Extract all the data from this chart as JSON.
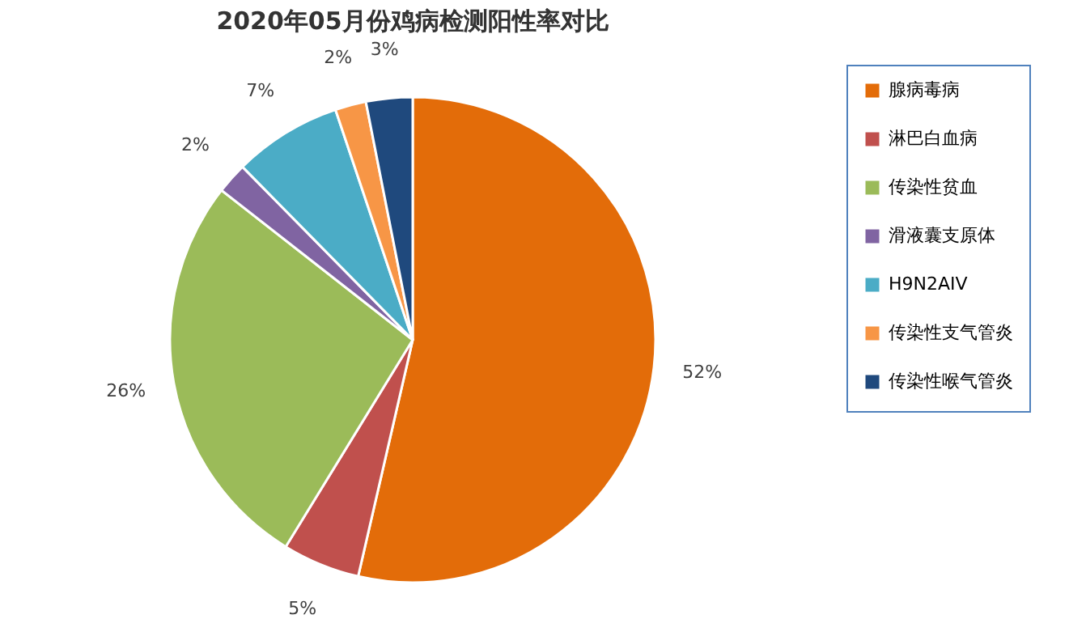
{
  "chart_data": {
    "type": "pie",
    "title": "2020年05月份鸡病检测阳性率对比",
    "categories": [
      "腺病毒病",
      "淋巴白血病",
      "传染性贫血",
      "滑液囊支原体",
      "H9N2AIV",
      "传染性支气管炎",
      "传染性喉气管炎"
    ],
    "values": [
      52,
      5,
      26,
      2,
      7,
      2,
      3
    ],
    "colors": [
      "#e36c09",
      "#c0504d",
      "#9bbb59",
      "#8064a2",
      "#4bacc6",
      "#f79646",
      "#1f497d"
    ],
    "value_labels": [
      "52%",
      "5%",
      "26%",
      "2%",
      "7%",
      "2%",
      "3%"
    ],
    "legend": "right"
  }
}
